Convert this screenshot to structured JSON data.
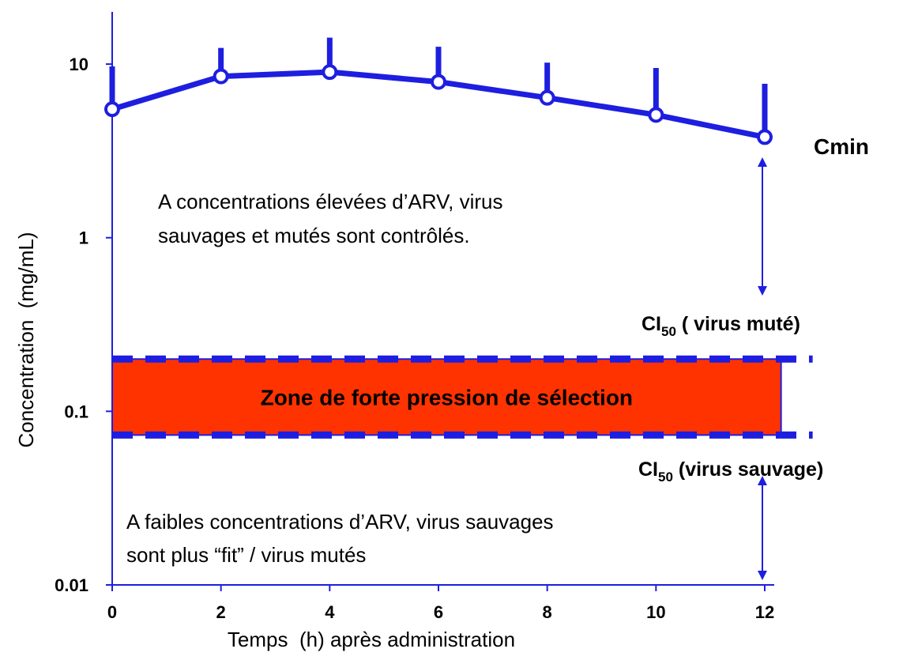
{
  "chart_data": {
    "type": "line",
    "x_label": "Temps  (h) après administration",
    "y_label": "Concentration  (mg/mL)",
    "x": [
      0,
      2,
      4,
      6,
      8,
      10,
      12
    ],
    "series": [
      {
        "color": "#1e1ee0",
        "values": [
          5.5,
          8.5,
          9.0,
          7.9,
          6.4,
          5.1,
          3.8
        ],
        "errors": [
          4.2,
          3.9,
          5.2,
          4.7,
          3.8,
          4.4,
          3.9
        ]
      }
    ],
    "xlim": [
      0,
      12
    ],
    "xticks": [
      0,
      2,
      4,
      6,
      8,
      10,
      12
    ],
    "ylim": [
      0.01,
      20
    ],
    "yticks": [
      0.01,
      0.1,
      1,
      10
    ],
    "log_y": true,
    "band": {
      "low": 0.073,
      "high": 0.2,
      "x_end": 12.3,
      "color": "#ff3300",
      "label": "Zone de forte pression de sélection"
    },
    "annotations": {
      "cmin": "Cmin",
      "high_text": [
        "A concentrations élevées d’ARV, virus",
        "sauvages et mutés sont contrôlés."
      ],
      "low_text": [
        "A faibles concentrations d’ARV, virus sauvages",
        "sont plus “fit” / virus mutés"
      ],
      "ci50_mutated": {
        "main": "CI",
        "sub": "50",
        "rest": " ( virus muté)"
      },
      "ci50_wild": {
        "main": "CI",
        "sub": "50",
        "rest": " (virus sauvage)"
      }
    }
  }
}
